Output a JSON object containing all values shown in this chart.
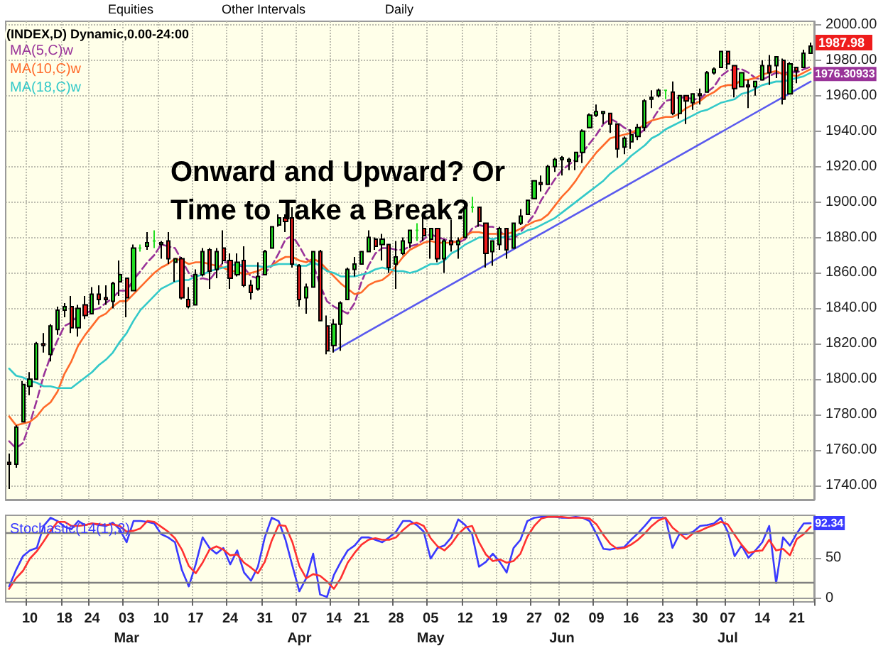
{
  "chart_data": [
    {
      "type": "candlestick",
      "title": "Onward and Upward? Or Time to Take a Break?",
      "categories": [
        null,
        null,
        null,
        null,
        null,
        null,
        null,
        null,
        null,
        null,
        null,
        null,
        null,
        null,
        null,
        null,
        null,
        null,
        null,
        null,
        null,
        null,
        null,
        null,
        null,
        null,
        null,
        null,
        null,
        null,
        null,
        null,
        null,
        null,
        null,
        null,
        null,
        null,
        null,
        null,
        null,
        null,
        null,
        null,
        null,
        null,
        null,
        null,
        null,
        null,
        null,
        null,
        null,
        null,
        null,
        null,
        null,
        null,
        null,
        null,
        null,
        null,
        null,
        null,
        null,
        null,
        null,
        null,
        null,
        null,
        null,
        null,
        null,
        null,
        null,
        null,
        null,
        null,
        null,
        null,
        null,
        null,
        null,
        null,
        null,
        null,
        null,
        null,
        null,
        null,
        null,
        null,
        null,
        null,
        null,
        null,
        null,
        null,
        null,
        null,
        null,
        null,
        null,
        null,
        null,
        null,
        null,
        null,
        null,
        null,
        null,
        null,
        null,
        null,
        null,
        null,
        null
      ],
      "ohlc": [
        [
          1753,
          1758,
          1738,
          1752
        ],
        [
          1752,
          1774,
          1750,
          1773
        ],
        [
          1776,
          1799,
          1776,
          1797
        ],
        [
          1796,
          1804,
          1791,
          1800
        ],
        [
          1800,
          1821,
          1800,
          1820
        ],
        [
          1820,
          1826,
          1815,
          1819
        ],
        [
          1814,
          1831,
          1810,
          1830
        ],
        [
          1828,
          1841,
          1825,
          1839
        ],
        [
          1839,
          1843,
          1835,
          1841
        ],
        [
          1841,
          1847,
          1826,
          1829
        ],
        [
          1829,
          1842,
          1824,
          1840
        ],
        [
          1842,
          1847,
          1834,
          1836
        ],
        [
          1837,
          1852,
          1837,
          1848
        ],
        [
          1848,
          1853,
          1842,
          1845
        ],
        [
          1846,
          1853,
          1842,
          1845
        ],
        [
          1844,
          1855,
          1840,
          1854
        ],
        [
          1855,
          1867,
          1847,
          1859
        ],
        [
          1857,
          1857,
          1835,
          1846
        ],
        [
          1850,
          1876,
          1850,
          1874
        ],
        [
          1874,
          1876,
          1872,
          1874
        ],
        [
          1875,
          1883,
          1873,
          1877
        ],
        [
          1878,
          1884,
          1874,
          1878
        ],
        [
          1876,
          1878,
          1868,
          1877
        ],
        [
          1878,
          1883,
          1865,
          1868
        ],
        [
          1866,
          1868,
          1855,
          1868
        ],
        [
          1868,
          1869,
          1845,
          1846
        ],
        [
          1845,
          1852,
          1840,
          1841
        ],
        [
          1842,
          1862,
          1842,
          1859
        ],
        [
          1859,
          1874,
          1858,
          1872
        ],
        [
          1873,
          1874,
          1851,
          1861
        ],
        [
          1862,
          1874,
          1857,
          1872
        ],
        [
          1874,
          1884,
          1865,
          1867
        ],
        [
          1867,
          1871,
          1851,
          1857
        ],
        [
          1859,
          1871,
          1858,
          1866
        ],
        [
          1867,
          1875,
          1852,
          1853
        ],
        [
          1853,
          1856,
          1845,
          1849
        ],
        [
          1851,
          1866,
          1850,
          1858
        ],
        [
          1859,
          1873,
          1859,
          1872
        ],
        [
          1874,
          1886,
          1874,
          1886
        ],
        [
          1887,
          1893,
          1886,
          1891
        ],
        [
          1891,
          1893,
          1883,
          1889
        ],
        [
          1891,
          1897,
          1863,
          1865
        ],
        [
          1864,
          1865,
          1841,
          1845
        ],
        [
          1846,
          1854,
          1837,
          1852
        ],
        [
          1852,
          1872,
          1852,
          1872
        ],
        [
          1872,
          1873,
          1833,
          1833
        ],
        [
          1830,
          1836,
          1814,
          1816
        ],
        [
          1819,
          1834,
          1815,
          1831
        ],
        [
          1831,
          1844,
          1816,
          1843
        ],
        [
          1845,
          1863,
          1845,
          1862
        ],
        [
          1862,
          1869,
          1858,
          1865
        ],
        [
          1865,
          1872,
          1865,
          1872
        ],
        [
          1872,
          1884,
          1872,
          1880
        ],
        [
          1879,
          1880,
          1873,
          1875
        ],
        [
          1876,
          1882,
          1867,
          1879
        ],
        [
          1876,
          1876,
          1860,
          1863
        ],
        [
          1865,
          1878,
          1851,
          1869
        ],
        [
          1871,
          1880,
          1870,
          1878
        ],
        [
          1877,
          1884,
          1874,
          1884
        ],
        [
          1884,
          1888,
          1878,
          1884
        ],
        [
          1885,
          1892,
          1878,
          1881
        ],
        [
          1879,
          1885,
          1868,
          1885
        ],
        [
          1885,
          1885,
          1866,
          1868
        ],
        [
          1868,
          1879,
          1860,
          1878
        ],
        [
          1878,
          1890,
          1872,
          1876
        ],
        [
          1876,
          1880,
          1868,
          1878
        ],
        [
          1880,
          1897,
          1880,
          1897
        ],
        [
          1897,
          1903,
          1894,
          1897
        ],
        [
          1897,
          1897,
          1886,
          1889
        ],
        [
          1888,
          1888,
          1863,
          1871
        ],
        [
          1872,
          1878,
          1864,
          1878
        ],
        [
          1876,
          1886,
          1873,
          1885
        ],
        [
          1885,
          1885,
          1868,
          1873
        ],
        [
          1874,
          1888,
          1874,
          1888
        ],
        [
          1888,
          1896,
          1887,
          1892
        ],
        [
          1893,
          1901,
          1893,
          1901
        ],
        [
          1902,
          1912,
          1902,
          1912
        ],
        [
          1911,
          1915,
          1906,
          1910
        ],
        [
          1910,
          1921,
          1910,
          1920
        ],
        [
          1920,
          1925,
          1917,
          1924
        ],
        [
          1924,
          1926,
          1915,
          1925
        ],
        [
          1923,
          1925,
          1918,
          1924
        ],
        [
          1923,
          1928,
          1918,
          1928
        ],
        [
          1928,
          1941,
          1922,
          1940
        ],
        [
          1942,
          1950,
          1942,
          1949
        ],
        [
          1949,
          1955,
          1948,
          1951
        ],
        [
          1950,
          1951,
          1944,
          1951
        ],
        [
          1950,
          1950,
          1939,
          1944
        ],
        [
          1944,
          1944,
          1925,
          1930
        ],
        [
          1931,
          1937,
          1927,
          1936
        ],
        [
          1934,
          1941,
          1930,
          1938
        ],
        [
          1937,
          1944,
          1935,
          1942
        ],
        [
          1942,
          1958,
          1940,
          1957
        ],
        [
          1958,
          1963,
          1953,
          1959
        ],
        [
          1960,
          1964,
          1959,
          1963
        ],
        [
          1963,
          1963,
          1958,
          1963
        ],
        [
          1962,
          1968,
          1949,
          1950
        ],
        [
          1950,
          1960,
          1947,
          1960
        ],
        [
          1960,
          1960,
          1944,
          1957
        ],
        [
          1956,
          1961,
          1952,
          1961
        ],
        [
          1961,
          1964,
          1955,
          1960
        ],
        [
          1962,
          1974,
          1962,
          1973
        ],
        [
          1973,
          1976,
          1972,
          1975
        ],
        [
          1976,
          1985,
          1976,
          1985
        ],
        [
          1985,
          1985,
          1975,
          1978
        ],
        [
          1977,
          1977,
          1959,
          1964
        ],
        [
          1965,
          1973,
          1965,
          1973
        ],
        [
          1966,
          1969,
          1953,
          1965
        ],
        [
          1965,
          1968,
          1960,
          1968
        ],
        [
          1969,
          1980,
          1969,
          1977
        ],
        [
          1977,
          1983,
          1966,
          1973
        ],
        [
          1977,
          1982,
          1970,
          1982
        ],
        [
          1980,
          1981,
          1955,
          1958
        ],
        [
          1961,
          1979,
          1961,
          1978
        ],
        [
          1976,
          1976,
          1967,
          1974
        ],
        [
          1976,
          1986,
          1976,
          1984
        ],
        [
          1984,
          1990,
          1984,
          1987.98
        ]
      ],
      "colors": [
        "#ee1c1c",
        "#22dd22",
        "#22dd22",
        "#22dd22",
        "#22dd22",
        "#ee1c1c",
        "#22dd22",
        "#22dd22",
        "#22dd22",
        "#ee1c1c",
        "#22dd22",
        "#ee1c1c",
        "#22dd22",
        "#ee1c1c",
        "#ee1c1c",
        "#22dd22",
        "#22dd22",
        "#ee1c1c",
        "#22dd22",
        "#22dd22",
        "#22dd22",
        "#22dd22",
        "#22dd22",
        "#ee1c1c",
        "#22dd22",
        "#ee1c1c",
        "#ee1c1c",
        "#22dd22",
        "#22dd22",
        "#ee1c1c",
        "#22dd22",
        "#ee1c1c",
        "#ee1c1c",
        "#22dd22",
        "#ee1c1c",
        "#ee1c1c",
        "#22dd22",
        "#22dd22",
        "#22dd22",
        "#22dd22",
        "#ee1c1c",
        "#ee1c1c",
        "#ee1c1c",
        "#22dd22",
        "#22dd22",
        "#ee1c1c",
        "#ee1c1c",
        "#22dd22",
        "#22dd22",
        "#22dd22",
        "#22dd22",
        "#22dd22",
        "#22dd22",
        "#ee1c1c",
        "#22dd22",
        "#ee1c1c",
        "#22dd22",
        "#22dd22",
        "#22dd22",
        "#22dd22",
        "#ee1c1c",
        "#22dd22",
        "#ee1c1c",
        "#22dd22",
        "#ee1c1c",
        "#22dd22",
        "#22dd22",
        "#22dd22",
        "#ee1c1c",
        "#ee1c1c",
        "#22dd22",
        "#22dd22",
        "#ee1c1c",
        "#22dd22",
        "#22dd22",
        "#22dd22",
        "#22dd22",
        "#ee1c1c",
        "#22dd22",
        "#22dd22",
        "#22dd22",
        "#22dd22",
        "#22dd22",
        "#22dd22",
        "#22dd22",
        "#22dd22",
        "#22dd22",
        "#ee1c1c",
        "#ee1c1c",
        "#22dd22",
        "#22dd22",
        "#22dd22",
        "#22dd22",
        "#22dd22",
        "#22dd22",
        "#22dd22",
        "#ee1c1c",
        "#22dd22",
        "#ee1c1c",
        "#22dd22",
        "#ee1c1c",
        "#22dd22",
        "#22dd22",
        "#22dd22",
        "#ee1c1c",
        "#ee1c1c",
        "#22dd22",
        "#ee1c1c",
        "#22dd22",
        "#22dd22",
        "#ee1c1c",
        "#22dd22",
        "#ee1c1c",
        "#22dd22",
        "#ee1c1c",
        "#22dd22",
        "#22dd22"
      ],
      "series": [
        {
          "type": "line",
          "name": "MA(5,C)w",
          "color": "#993399",
          "line_style": "dashed",
          "values": [
            1765,
            1761,
            1764,
            1775,
            1788,
            1802,
            1813,
            1822,
            1830,
            1832,
            1836,
            1837,
            1839,
            1840,
            1843,
            1846,
            1850,
            1850,
            1856,
            1861,
            1866,
            1870,
            1876,
            1875,
            1874,
            1867,
            1860,
            1856,
            1857,
            1856,
            1861,
            1866,
            1866,
            1865,
            1863,
            1858,
            1857,
            1860,
            1864,
            1871,
            1879,
            1881,
            1875,
            1868,
            1865,
            1853,
            1844,
            1841,
            1839,
            1837,
            1843,
            1855,
            1864,
            1871,
            1874,
            1874,
            1873,
            1873,
            1875,
            1876,
            1879,
            1882,
            1880,
            1879,
            1878,
            1877,
            1879,
            1885,
            1887,
            1886,
            1886,
            1884,
            1879,
            1879,
            1883,
            1888,
            1893,
            1901,
            1907,
            1913,
            1918,
            1921,
            1924,
            1928,
            1933,
            1938,
            1944,
            1947,
            1945,
            1942,
            1940,
            1938,
            1941,
            1946,
            1952,
            1957,
            1958,
            1959,
            1959,
            1958,
            1958,
            1962,
            1965,
            1971,
            1974,
            1975,
            1975,
            1973,
            1970,
            1969,
            1971,
            1973,
            1972,
            1974,
            1973,
            1975,
            1976.30933
          ],
          "value_labels": [
            null,
            null,
            null,
            null,
            null,
            null,
            null,
            null,
            null,
            null,
            null,
            null,
            null,
            null,
            null,
            null,
            null,
            null,
            null,
            null,
            null,
            null,
            null,
            null,
            null,
            null,
            null,
            null,
            null,
            null,
            null,
            null,
            null,
            null,
            null,
            null,
            null,
            null,
            null,
            null,
            null,
            null,
            null,
            null,
            null,
            null,
            null,
            null,
            null,
            null,
            null,
            null,
            null,
            null,
            null,
            null,
            null,
            null,
            null,
            null,
            null,
            null,
            null,
            null,
            null,
            null,
            null,
            null,
            null,
            null,
            null,
            null,
            null,
            null,
            null,
            null,
            null,
            null,
            null,
            null,
            null,
            null,
            null,
            null,
            null,
            null,
            null,
            null,
            null,
            null,
            null,
            null,
            null,
            null,
            null,
            null,
            null,
            null,
            null,
            null,
            null,
            null,
            null,
            null,
            null,
            null,
            null,
            null,
            null,
            null,
            null,
            null,
            null,
            null,
            null,
            null,
            "1976.30933"
          ]
        },
        {
          "type": "line",
          "name": "MA(10,C)w",
          "color": "#ff6a2a",
          "values": [
            1779,
            1774,
            1775,
            1776,
            1779,
            1784,
            1787,
            1793,
            1803,
            1810,
            1819,
            1825,
            1830,
            1835,
            1837,
            1841,
            1844,
            1844,
            1848,
            1852,
            1856,
            1860,
            1863,
            1865,
            1868,
            1867,
            1865,
            1866,
            1866,
            1865,
            1864,
            1863,
            1861,
            1861,
            1859,
            1860,
            1861,
            1863,
            1864,
            1867,
            1869,
            1869,
            1867,
            1866,
            1868,
            1866,
            1862,
            1858,
            1854,
            1851,
            1848,
            1849,
            1853,
            1855,
            1856,
            1859,
            1864,
            1869,
            1873,
            1875,
            1877,
            1878,
            1877,
            1877,
            1877,
            1878,
            1881,
            1883,
            1883,
            1882,
            1882,
            1882,
            1882,
            1883,
            1885,
            1887,
            1889,
            1890,
            1893,
            1898,
            1903,
            1907,
            1912,
            1918,
            1923,
            1928,
            1932,
            1936,
            1937,
            1938,
            1939,
            1941,
            1944,
            1946,
            1947,
            1948,
            1948,
            1950,
            1953,
            1955,
            1957,
            1960,
            1962,
            1965,
            1966,
            1966,
            1969,
            1969,
            1970,
            1972,
            1973,
            1974,
            1972,
            1972,
            1971,
            1973,
            1975
          ]
        },
        {
          "type": "line",
          "name": "MA(18,C)w",
          "color": "#33c9c9",
          "values": [
            1806,
            1802,
            1801,
            1799,
            1798,
            1796,
            1796,
            1795,
            1795,
            1795,
            1798,
            1801,
            1804,
            1808,
            1811,
            1815,
            1821,
            1826,
            1833,
            1839,
            1843,
            1847,
            1851,
            1853,
            1855,
            1856,
            1856,
            1858,
            1859,
            1861,
            1862,
            1863,
            1864,
            1865,
            1864,
            1864,
            1864,
            1863,
            1864,
            1865,
            1865,
            1865,
            1864,
            1864,
            1866,
            1864,
            1861,
            1860,
            1858,
            1858,
            1858,
            1859,
            1860,
            1862,
            1863,
            1862,
            1861,
            1861,
            1860,
            1861,
            1863,
            1865,
            1865,
            1867,
            1871,
            1873,
            1876,
            1878,
            1880,
            1880,
            1879,
            1880,
            1880,
            1881,
            1882,
            1884,
            1885,
            1887,
            1889,
            1891,
            1894,
            1897,
            1900,
            1903,
            1906,
            1909,
            1912,
            1916,
            1919,
            1922,
            1926,
            1929,
            1932,
            1936,
            1938,
            1941,
            1943,
            1945,
            1947,
            1949,
            1951,
            1952,
            1954,
            1956,
            1957,
            1958,
            1961,
            1962,
            1964,
            1966,
            1967,
            1968,
            1968,
            1969,
            1970,
            1971,
            1973
          ]
        },
        {
          "type": "line",
          "color": "#5a5aee",
          "values": [
            null,
            null,
            null,
            null,
            null,
            null,
            null,
            null,
            null,
            null,
            null,
            null,
            null,
            null,
            null,
            null,
            null,
            null,
            null,
            null,
            null,
            null,
            null,
            null,
            null,
            null,
            null,
            null,
            null,
            null,
            null,
            null,
            null,
            null,
            null,
            null,
            null,
            null,
            null,
            null,
            null,
            null,
            null,
            null,
            null,
            null,
            null,
            1816,
            null,
            null,
            null,
            null,
            null,
            null,
            null,
            null,
            null,
            null,
            null,
            null,
            null,
            null,
            null,
            null,
            null,
            null,
            null,
            null,
            null,
            null,
            null,
            null,
            null,
            null,
            null,
            null,
            null,
            null,
            null,
            null,
            null,
            null,
            null,
            null,
            null,
            null,
            null,
            null,
            null,
            null,
            null,
            null,
            null,
            null,
            null,
            null,
            null,
            null,
            null,
            null,
            null,
            null,
            null,
            null,
            null,
            null,
            null,
            null,
            null,
            null,
            null,
            null,
            null,
            null,
            null,
            null,
            1968
          ]
        }
      ],
      "ylim": [
        1732,
        2002
      ],
      "yticks": [
        {
          "value": 1740,
          "label": "1740.00"
        },
        {
          "value": 1760,
          "label": "1760.00"
        },
        {
          "value": 1780,
          "label": "1780.00"
        },
        {
          "value": 1800,
          "label": "1800.00"
        },
        {
          "value": 1820,
          "label": "1820.00"
        },
        {
          "value": 1840,
          "label": "1840.00"
        },
        {
          "value": 1860,
          "label": "1860.00"
        },
        {
          "value": 1880,
          "label": "1880.00"
        },
        {
          "value": 1900,
          "label": "1900.00"
        },
        {
          "value": 1920,
          "label": "1920.00"
        },
        {
          "value": 1940,
          "label": "1940.00"
        },
        {
          "value": 1960,
          "label": "1960.00"
        },
        {
          "value": 1980,
          "label": "1980.00"
        },
        {
          "value": 2000,
          "label": "2000.00"
        }
      ],
      "annotations": [
        "(INDEX,D) Dynamic,0.00-24:00",
        "Equities",
        "Other Intervals",
        "Daily",
        "1987.98"
      ],
      "grid": true,
      "legend": "top left",
      "tick_labels": "y"
    },
    {
      "type": "line",
      "categories": [
        null,
        null,
        null,
        "10",
        null,
        null,
        null,
        null,
        "18",
        null,
        null,
        null,
        "24",
        null,
        null,
        null,
        null,
        "03\nMar",
        null,
        null,
        null,
        null,
        "10",
        null,
        null,
        null,
        null,
        "17",
        null,
        null,
        null,
        null,
        "24",
        null,
        null,
        null,
        null,
        "31",
        null,
        null,
        null,
        null,
        "07\nApr",
        null,
        null,
        null,
        null,
        "14",
        null,
        null,
        null,
        "21",
        null,
        null,
        null,
        null,
        "28",
        null,
        null,
        null,
        null,
        "05\nMay",
        null,
        null,
        null,
        null,
        "12",
        null,
        null,
        null,
        null,
        "19",
        null,
        null,
        null,
        null,
        "27",
        null,
        null,
        null,
        "02\nJun",
        null,
        null,
        null,
        null,
        "09",
        null,
        null,
        null,
        null,
        "16",
        null,
        null,
        null,
        null,
        "23",
        null,
        null,
        null,
        null,
        "30",
        null,
        null,
        null,
        "07\nJul",
        null,
        null,
        null,
        null,
        "14",
        null,
        null,
        null,
        null,
        "21",
        null,
        null
      ],
      "series": [
        {
          "name": "Stochastic(14(1),3)",
          "color": "#3a3aff",
          "values": [
            15,
            35,
            52,
            59,
            62,
            89,
            99,
            95,
            88,
            85,
            95,
            90,
            92,
            90,
            89,
            93,
            85,
            69,
            95,
            95,
            94,
            92,
            79,
            75,
            69,
            35,
            15,
            42,
            75,
            62,
            55,
            62,
            42,
            59,
            32,
            22,
            39,
            75,
            99,
            95,
            72,
            40,
            9,
            25,
            55,
            5,
            2,
            29,
            45,
            59,
            65,
            75,
            75,
            72,
            69,
            75,
            82,
            95,
            95,
            90,
            82,
            49,
            62,
            65,
            75,
            97,
            90,
            79,
            39,
            45,
            55,
            45,
            32,
            62,
            72,
            95,
            99,
            100,
            100,
            100,
            99,
            99,
            100,
            99,
            95,
            79,
            61,
            60,
            62,
            63,
            72,
            80,
            89,
            99,
            99,
            99,
            62,
            79,
            79,
            82,
            89,
            90,
            92,
            99,
            82,
            52,
            65,
            50,
            59,
            69,
            89,
            19,
            75,
            65,
            80,
            92,
            92.34
          ],
          "value_labels": [
            null,
            null,
            null,
            null,
            null,
            null,
            null,
            null,
            null,
            null,
            null,
            null,
            null,
            null,
            null,
            null,
            null,
            null,
            null,
            null,
            null,
            null,
            null,
            null,
            null,
            null,
            null,
            null,
            null,
            null,
            null,
            null,
            null,
            null,
            null,
            null,
            null,
            null,
            null,
            null,
            null,
            null,
            null,
            null,
            null,
            null,
            null,
            null,
            null,
            null,
            null,
            null,
            null,
            null,
            null,
            null,
            null,
            null,
            null,
            null,
            null,
            null,
            null,
            null,
            null,
            null,
            null,
            null,
            null,
            null,
            null,
            null,
            null,
            null,
            null,
            null,
            null,
            null,
            null,
            null,
            null,
            null,
            null,
            null,
            null,
            null,
            null,
            null,
            null,
            null,
            null,
            null,
            null,
            null,
            null,
            null,
            null,
            null,
            null,
            null,
            null,
            null,
            null,
            null,
            null,
            null,
            null,
            null,
            null,
            null,
            null,
            null,
            null,
            null,
            null,
            null,
            "92.34"
          ]
        },
        {
          "color": "#ff3030",
          "values": [
            12,
            25,
            34,
            49,
            58,
            70,
            83,
            94,
            94,
            89,
            89,
            90,
            92,
            91,
            90,
            91,
            89,
            82,
            83,
            86,
            95,
            94,
            88,
            82,
            74,
            60,
            40,
            31,
            44,
            60,
            64,
            60,
            53,
            54,
            44,
            38,
            31,
            45,
            71,
            90,
            89,
            69,
            40,
            25,
            30,
            28,
            21,
            12,
            25,
            44,
            56,
            66,
            72,
            74,
            72,
            72,
            75,
            84,
            91,
            93,
            89,
            74,
            64,
            59,
            67,
            79,
            87,
            89,
            69,
            54,
            46,
            48,
            44,
            46,
            55,
            76,
            89,
            98,
            100,
            100,
            100,
            99,
            99,
            99,
            98,
            91,
            78,
            67,
            61,
            62,
            66,
            72,
            80,
            89,
            96,
            99,
            87,
            80,
            73,
            80,
            83,
            87,
            90,
            94,
            91,
            78,
            66,
            56,
            58,
            59,
            72,
            59,
            61,
            53,
            73,
            79,
            88
          ]
        }
      ],
      "ylim": [
        -4,
        102
      ],
      "yticks": [
        0,
        50
      ],
      "ref_lines": [
        {
          "axis": "y",
          "value": 20,
          "color": "#808080"
        },
        {
          "axis": "y",
          "value": 80,
          "color": "#808080"
        }
      ],
      "grid": true,
      "legend": "top left"
    }
  ]
}
